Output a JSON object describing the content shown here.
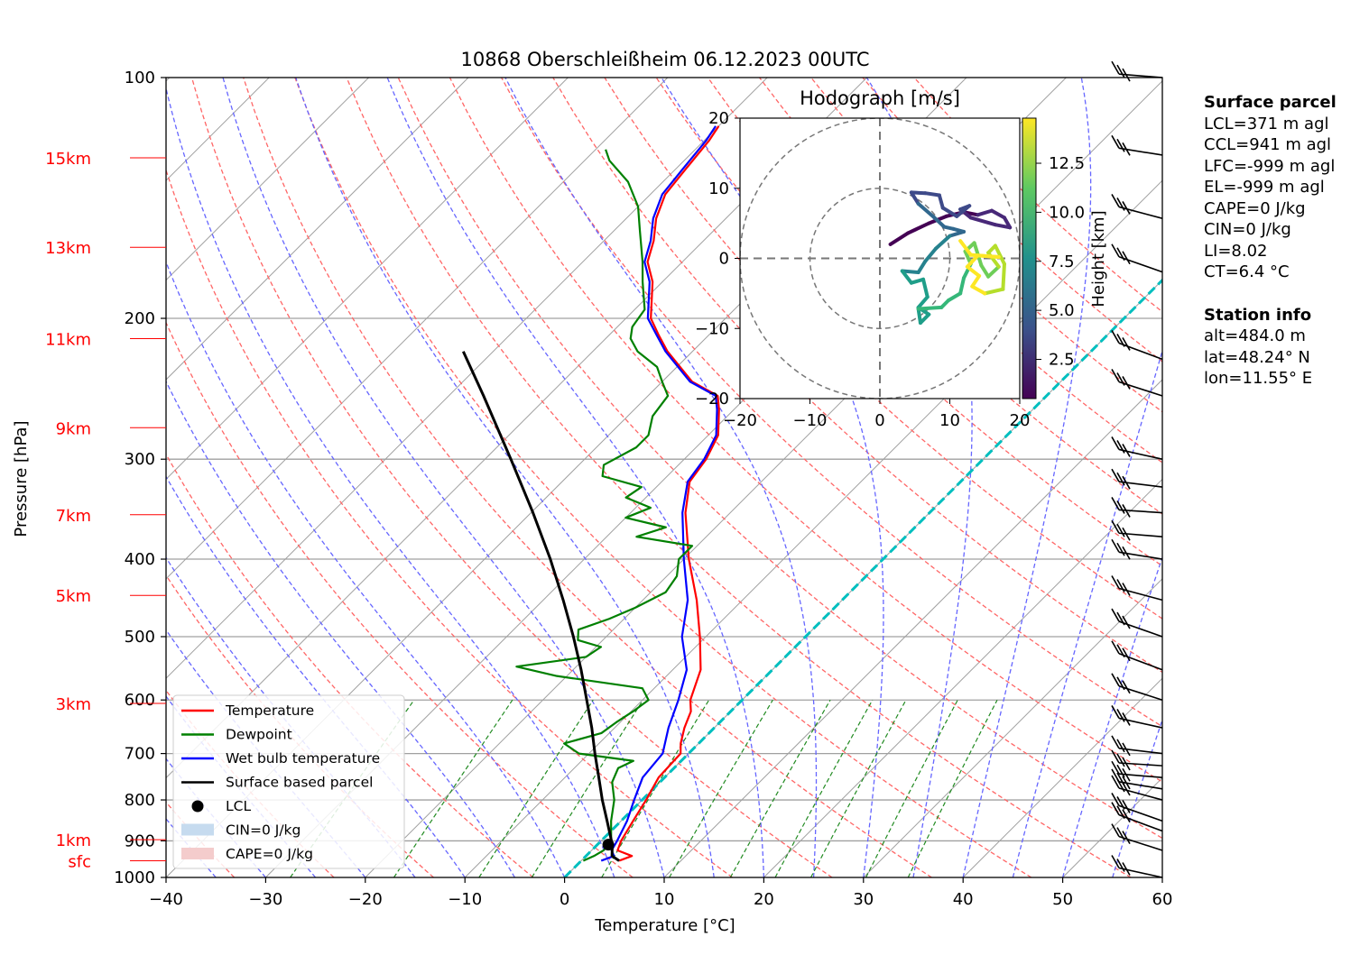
{
  "chart_data": {
    "type": "line",
    "title": "10868 Oberschleißheim 06.12.2023 00UTC",
    "xlabel": "Temperature [°C]",
    "ylabel": "Pressure [hPa]",
    "xlim": [
      -40,
      60
    ],
    "ylim": [
      1000,
      100
    ],
    "y_scale": "log",
    "xticks": [
      "−40",
      "−30",
      "−20",
      "−10",
      "0",
      "10",
      "20",
      "30",
      "40",
      "50",
      "60"
    ],
    "yticks": [
      "100",
      "200",
      "300",
      "400",
      "500",
      "600",
      "700",
      "800",
      "900",
      "1000"
    ],
    "height_labels": [
      {
        "label": "15km",
        "p": 126
      },
      {
        "label": "13km",
        "p": 163
      },
      {
        "label": "11km",
        "p": 212
      },
      {
        "label": "9km",
        "p": 274
      },
      {
        "label": "7km",
        "p": 352
      },
      {
        "label": "5km",
        "p": 444
      },
      {
        "label": "3km",
        "p": 606
      },
      {
        "label": "1km",
        "p": 897
      },
      {
        "label": "sfc",
        "p": 953
      }
    ],
    "legend": {
      "placement": "lower-left",
      "entries": [
        {
          "label": "Temperature",
          "color": "#ff0000",
          "kind": "line"
        },
        {
          "label": "Dewpoint",
          "color": "#008000",
          "kind": "line"
        },
        {
          "label": "Wet bulb temperature",
          "color": "#0000ff",
          "kind": "line"
        },
        {
          "label": "Surface based parcel",
          "color": "#000000",
          "kind": "line"
        },
        {
          "label": "LCL",
          "color": "#000000",
          "kind": "marker"
        },
        {
          "label": "CIN=0 J/kg",
          "color": "#c6dbef",
          "kind": "patch"
        },
        {
          "label": "CAPE=0 J/kg",
          "color": "#f4cccc",
          "kind": "patch"
        }
      ]
    },
    "series": [
      {
        "name": "Temperature",
        "color": "#ff0000",
        "points": [
          [
            953,
            3.8
          ],
          [
            940,
            4.6
          ],
          [
            925,
            2.6
          ],
          [
            900,
            2.0
          ],
          [
            850,
            1.2
          ],
          [
            800,
            0.4
          ],
          [
            750,
            -0.6
          ],
          [
            700,
            -0.8
          ],
          [
            680,
            -1.8
          ],
          [
            650,
            -3.0
          ],
          [
            620,
            -4.0
          ],
          [
            600,
            -5.2
          ],
          [
            550,
            -7.2
          ],
          [
            500,
            -10.6
          ],
          [
            450,
            -14.6
          ],
          [
            400,
            -19.5
          ],
          [
            350,
            -24.5
          ],
          [
            320,
            -27.2
          ],
          [
            300,
            -27.8
          ],
          [
            280,
            -29.0
          ],
          [
            260,
            -31.5
          ],
          [
            250,
            -33.0
          ],
          [
            240,
            -37.0
          ],
          [
            220,
            -42.5
          ],
          [
            210,
            -45.0
          ],
          [
            200,
            -47.5
          ],
          [
            180,
            -51.0
          ],
          [
            170,
            -53.5
          ],
          [
            160,
            -55.0
          ],
          [
            150,
            -57.0
          ],
          [
            140,
            -58.5
          ],
          [
            130,
            -59.0
          ],
          [
            120,
            -59.5
          ],
          [
            115,
            -60.0
          ]
        ]
      },
      {
        "name": "Wet bulb temperature",
        "color": "#0000ff",
        "points": [
          [
            953,
            2.0
          ],
          [
            940,
            2.8
          ],
          [
            925,
            2.0
          ],
          [
            900,
            1.6
          ],
          [
            850,
            0.6
          ],
          [
            800,
            -0.8
          ],
          [
            750,
            -2.2
          ],
          [
            700,
            -2.6
          ],
          [
            650,
            -4.6
          ],
          [
            600,
            -6.4
          ],
          [
            550,
            -8.6
          ],
          [
            500,
            -12.4
          ],
          [
            450,
            -15.5
          ],
          [
            400,
            -20.0
          ],
          [
            350,
            -24.8
          ],
          [
            320,
            -27.4
          ],
          [
            300,
            -28.0
          ],
          [
            280,
            -29.2
          ],
          [
            260,
            -31.7
          ],
          [
            250,
            -33.2
          ],
          [
            240,
            -37.2
          ],
          [
            220,
            -42.7
          ],
          [
            210,
            -45.2
          ],
          [
            200,
            -47.8
          ],
          [
            180,
            -51.3
          ],
          [
            170,
            -53.8
          ],
          [
            160,
            -55.3
          ],
          [
            150,
            -57.3
          ],
          [
            140,
            -58.8
          ],
          [
            130,
            -59.3
          ],
          [
            120,
            -59.8
          ],
          [
            115,
            -60.3
          ]
        ]
      },
      {
        "name": "Dewpoint",
        "color": "#008000",
        "points": [
          [
            953,
            0.2
          ],
          [
            940,
            0.8
          ],
          [
            925,
            1.2
          ],
          [
            900,
            1.0
          ],
          [
            850,
            -1.0
          ],
          [
            800,
            -2.8
          ],
          [
            760,
            -4.8
          ],
          [
            730,
            -5.6
          ],
          [
            715,
            -4.8
          ],
          [
            700,
            -11.0
          ],
          [
            680,
            -13.5
          ],
          [
            660,
            -10.8
          ],
          [
            640,
            -10.4
          ],
          [
            620,
            -9.8
          ],
          [
            600,
            -9.4
          ],
          [
            580,
            -11.2
          ],
          [
            560,
            -21.0
          ],
          [
            545,
            -26.0
          ],
          [
            530,
            -20.0
          ],
          [
            515,
            -19.5
          ],
          [
            505,
            -22.5
          ],
          [
            490,
            -23.5
          ],
          [
            475,
            -21.5
          ],
          [
            460,
            -20.0
          ],
          [
            440,
            -18.5
          ],
          [
            420,
            -19.0
          ],
          [
            400,
            -20.5
          ],
          [
            385,
            -20.5
          ],
          [
            375,
            -27.0
          ],
          [
            365,
            -25.0
          ],
          [
            355,
            -30.0
          ],
          [
            345,
            -28.5
          ],
          [
            335,
            -32.0
          ],
          [
            325,
            -31.5
          ],
          [
            315,
            -36.5
          ],
          [
            305,
            -37.5
          ],
          [
            290,
            -36.0
          ],
          [
            280,
            -36.0
          ],
          [
            265,
            -37.5
          ],
          [
            250,
            -38.0
          ],
          [
            240,
            -40.0
          ],
          [
            230,
            -42.0
          ],
          [
            220,
            -45.5
          ],
          [
            212,
            -47.5
          ],
          [
            205,
            -48.5
          ],
          [
            195,
            -49.0
          ],
          [
            180,
            -52.0
          ],
          [
            170,
            -54.0
          ],
          [
            155,
            -57.5
          ],
          [
            145,
            -60.0
          ],
          [
            135,
            -63.5
          ],
          [
            127,
            -67.5
          ],
          [
            123,
            -69.0
          ]
        ]
      },
      {
        "name": "Surface based parcel",
        "color": "#000000",
        "points": [
          [
            953,
            3.8
          ],
          [
            940,
            2.6
          ],
          [
            910,
            1.5
          ],
          [
            850,
            -1.4
          ],
          [
            800,
            -4.0
          ],
          [
            750,
            -6.6
          ],
          [
            700,
            -9.4
          ],
          [
            650,
            -12.3
          ],
          [
            600,
            -15.6
          ],
          [
            550,
            -19.2
          ],
          [
            500,
            -23.3
          ],
          [
            450,
            -28.0
          ],
          [
            400,
            -33.4
          ],
          [
            350,
            -39.8
          ],
          [
            300,
            -47.4
          ],
          [
            250,
            -56.5
          ],
          [
            220,
            -63.0
          ]
        ]
      }
    ],
    "lcl": {
      "p": 910,
      "t": 1.1
    },
    "freezing_level_line": {
      "color": "#00bfbf",
      "t": 0
    },
    "wind_barbs": [
      {
        "p": 1000,
        "label": "sfc"
      },
      {
        "p": 925
      },
      {
        "p": 875
      },
      {
        "p": 850
      },
      {
        "p": 800
      },
      {
        "p": 775
      },
      {
        "p": 750
      },
      {
        "p": 725
      },
      {
        "p": 700
      },
      {
        "p": 650
      },
      {
        "p": 600
      },
      {
        "p": 550
      },
      {
        "p": 500
      },
      {
        "p": 450
      },
      {
        "p": 400
      },
      {
        "p": 375
      },
      {
        "p": 350
      },
      {
        "p": 325
      },
      {
        "p": 300
      },
      {
        "p": 250
      },
      {
        "p": 225
      },
      {
        "p": 175
      },
      {
        "p": 150
      },
      {
        "p": 125
      },
      {
        "p": 100
      }
    ],
    "hodograph": {
      "title": "Hodograph [m/s]",
      "xlim": [
        -20,
        20
      ],
      "ylim": [
        -20,
        20
      ],
      "ticks": [
        "−20",
        "−10",
        "0",
        "10",
        "20"
      ],
      "colorbar": {
        "label": "Height [km]",
        "ticks": [
          "2.5",
          "5.0",
          "7.5",
          "10.0",
          "12.5"
        ],
        "range": [
          0.5,
          14.8
        ]
      },
      "path": [
        {
          "u": 1.5,
          "v": 2.0,
          "h": 0.5
        },
        {
          "u": 4.0,
          "v": 3.6,
          "h": 0.8
        },
        {
          "u": 7.0,
          "v": 5.0,
          "h": 1.2
        },
        {
          "u": 9.5,
          "v": 6.0,
          "h": 1.5
        },
        {
          "u": 12.0,
          "v": 6.6,
          "h": 1.8
        },
        {
          "u": 14.0,
          "v": 6.2,
          "h": 2.0
        },
        {
          "u": 16.0,
          "v": 6.8,
          "h": 2.3
        },
        {
          "u": 17.8,
          "v": 5.8,
          "h": 2.6
        },
        {
          "u": 18.6,
          "v": 4.4,
          "h": 2.8
        },
        {
          "u": 16.5,
          "v": 4.8,
          "h": 3.0
        },
        {
          "u": 13.0,
          "v": 5.8,
          "h": 3.2
        },
        {
          "u": 11.5,
          "v": 7.0,
          "h": 3.4
        },
        {
          "u": 12.8,
          "v": 7.5,
          "h": 3.6
        },
        {
          "u": 11.0,
          "v": 6.0,
          "h": 3.8
        },
        {
          "u": 9.0,
          "v": 7.2,
          "h": 4.0
        },
        {
          "u": 8.5,
          "v": 9.0,
          "h": 4.2
        },
        {
          "u": 6.5,
          "v": 9.3,
          "h": 4.4
        },
        {
          "u": 4.5,
          "v": 9.4,
          "h": 4.6
        },
        {
          "u": 5.5,
          "v": 7.8,
          "h": 4.8
        },
        {
          "u": 7.8,
          "v": 5.8,
          "h": 5.0
        },
        {
          "u": 9.2,
          "v": 4.5,
          "h": 5.3
        },
        {
          "u": 10.5,
          "v": 4.2,
          "h": 5.6
        },
        {
          "u": 12.0,
          "v": 3.8,
          "h": 5.9
        },
        {
          "u": 10.0,
          "v": 3.2,
          "h": 6.2
        },
        {
          "u": 8.0,
          "v": 1.4,
          "h": 6.6
        },
        {
          "u": 6.5,
          "v": -0.4,
          "h": 7.0
        },
        {
          "u": 5.5,
          "v": -2.0,
          "h": 7.3
        },
        {
          "u": 3.2,
          "v": -1.8,
          "h": 7.6
        },
        {
          "u": 4.5,
          "v": -3.5,
          "h": 7.8
        },
        {
          "u": 6.2,
          "v": -3.0,
          "h": 8.0
        },
        {
          "u": 6.8,
          "v": -5.5,
          "h": 8.2
        },
        {
          "u": 5.5,
          "v": -7.0,
          "h": 8.4
        },
        {
          "u": 7.0,
          "v": -8.0,
          "h": 8.6
        },
        {
          "u": 5.8,
          "v": -9.2,
          "h": 8.8
        },
        {
          "u": 5.5,
          "v": -7.2,
          "h": 9.0
        },
        {
          "u": 8.8,
          "v": -7.0,
          "h": 9.3
        },
        {
          "u": 9.8,
          "v": -6.0,
          "h": 9.6
        },
        {
          "u": 11.5,
          "v": -5.0,
          "h": 9.9
        },
        {
          "u": 12.0,
          "v": -2.8,
          "h": 10.2
        },
        {
          "u": 13.0,
          "v": -0.8,
          "h": 10.5
        },
        {
          "u": 12.2,
          "v": 1.0,
          "h": 10.8
        },
        {
          "u": 13.5,
          "v": 2.2,
          "h": 11.0
        },
        {
          "u": 14.5,
          "v": -1.0,
          "h": 11.3
        },
        {
          "u": 15.5,
          "v": -2.6,
          "h": 11.6
        },
        {
          "u": 17.0,
          "v": -1.2,
          "h": 11.9
        },
        {
          "u": 15.5,
          "v": 0.8,
          "h": 12.2
        },
        {
          "u": 16.5,
          "v": 1.8,
          "h": 12.5
        },
        {
          "u": 17.8,
          "v": -0.8,
          "h": 12.8
        },
        {
          "u": 17.6,
          "v": -4.4,
          "h": 13.1
        },
        {
          "u": 15.0,
          "v": -5.0,
          "h": 13.3
        },
        {
          "u": 13.2,
          "v": -4.0,
          "h": 13.5
        },
        {
          "u": 14.2,
          "v": -2.5,
          "h": 13.7
        },
        {
          "u": 12.5,
          "v": -1.2,
          "h": 13.9
        },
        {
          "u": 14.0,
          "v": 0.4,
          "h": 14.1
        },
        {
          "u": 17.0,
          "v": 0.2,
          "h": 14.3
        },
        {
          "u": 13.0,
          "v": 0.5,
          "h": 14.5
        },
        {
          "u": 11.5,
          "v": 2.5,
          "h": 14.7
        }
      ]
    }
  },
  "side_panel": {
    "surface_title": "Surface parcel",
    "surface_lines": [
      "LCL=371 m agl",
      "CCL=941 m agl",
      "LFC=-999 m agl",
      "EL=-999 m agl",
      "CAPE=0 J/kg",
      "CIN=0 J/kg",
      "LI=8.02",
      "CT=6.4 °C"
    ],
    "station_title": "Station info",
    "station_lines": [
      "alt=484.0 m",
      "lat=48.24° N",
      "lon=11.55° E"
    ]
  },
  "colors": {
    "temperature": "#ff0000",
    "dewpoint": "#008000",
    "wetbulb": "#0000ff",
    "parcel": "#000000",
    "dry_adiabat": "#ff6666",
    "moist_adiabat": "#6666ff",
    "mixing_ratio": "#228b22",
    "isotherm": "#a0a0a0",
    "freezing": "#00bfbf",
    "height_label": "#ff0000"
  }
}
